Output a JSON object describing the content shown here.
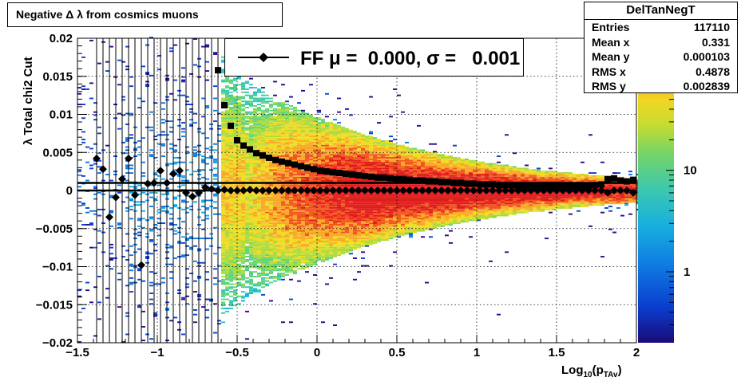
{
  "title": "Negative Δ λ from cosmics muons",
  "stats": {
    "name": "DelTanNegT",
    "rows": [
      {
        "label": "Entries",
        "value": "117110"
      },
      {
        "label": "Mean x",
        "value": "0.331"
      },
      {
        "label": "Mean y",
        "value": "0.000103"
      },
      {
        "label": "RMS x",
        "value": "0.4878"
      },
      {
        "label": "RMS y",
        "value": "0.002839"
      }
    ]
  },
  "legend": {
    "label": "FF μ =  0.000, σ =   0.001"
  },
  "chart_data": {
    "type": "heatmap",
    "xlabel_main": "Log",
    "xlabel_sub1": "10",
    "xlabel_mid": "(p",
    "xlabel_sub2": "TAv",
    "xlabel_end": ")",
    "ylabel": "λ  Total chi2 Cut",
    "xlim": [
      -1.5,
      2
    ],
    "ylim": [
      -0.02,
      0.02
    ],
    "x_ticks": [
      "−1.5",
      "−1",
      "−0.5",
      "0",
      "0.5",
      "1",
      "1.5",
      "2"
    ],
    "y_ticks": [
      "−0.02",
      "−0.015",
      "−0.01",
      "−0.005",
      "0",
      "0.005",
      "0.01",
      "0.015",
      "0.02"
    ],
    "z_scale": "log",
    "z_ticks": [
      "1",
      "10"
    ],
    "grid": true,
    "palette": [
      "#2b0a8c",
      "#0d3fd0",
      "#0e79e2",
      "#13a9e0",
      "#2fc7b4",
      "#5fd37a",
      "#a9dc3c",
      "#eedb22",
      "#f9a825",
      "#f2541c",
      "#e21a1a"
    ],
    "fit_lines": [
      {
        "name": "upper",
        "y": 0.001
      },
      {
        "name": "center",
        "y": 0.0
      }
    ],
    "series": [
      {
        "name": "sigma",
        "marker": "square",
        "x": [
          -0.62,
          -0.58,
          -0.54,
          -0.5,
          -0.46,
          -0.42,
          -0.38,
          -0.34,
          -0.3,
          -0.26,
          -0.22,
          -0.18,
          -0.14,
          -0.1,
          -0.06,
          -0.02,
          0.02,
          0.06,
          0.1,
          0.14,
          0.18,
          0.22,
          0.26,
          0.3,
          0.34,
          0.38,
          0.42,
          0.46,
          0.5,
          0.54,
          0.58,
          0.62,
          0.66,
          0.7,
          0.74,
          0.78,
          0.82,
          0.86,
          0.9,
          0.94,
          0.98,
          1.02,
          1.06,
          1.1,
          1.14,
          1.18,
          1.22,
          1.26,
          1.3,
          1.34,
          1.38,
          1.42,
          1.46,
          1.5,
          1.54,
          1.58,
          1.62,
          1.66,
          1.7,
          1.74,
          1.78,
          1.82,
          1.86,
          1.9,
          1.94,
          1.98
        ],
        "y": [
          0.0158,
          0.0112,
          0.0085,
          0.0066,
          0.0059,
          0.0054,
          0.0049,
          0.0046,
          0.0043,
          0.004,
          0.0038,
          0.0036,
          0.0034,
          0.0032,
          0.003,
          0.0028,
          0.0026,
          0.0025,
          0.0024,
          0.0023,
          0.0022,
          0.0021,
          0.002,
          0.0019,
          0.0018,
          0.0017,
          0.0017,
          0.0016,
          0.0015,
          0.0015,
          0.0014,
          0.0013,
          0.0013,
          0.0012,
          0.0012,
          0.0011,
          0.0011,
          0.001,
          0.001,
          0.0009,
          0.0009,
          0.0008,
          0.0008,
          0.0008,
          0.0007,
          0.0007,
          0.0007,
          0.0006,
          0.0006,
          0.0006,
          0.0005,
          0.0005,
          0.0005,
          0.0005,
          0.0006,
          0.0005,
          0.0006,
          0.0005,
          0.0006,
          0.0007,
          0.0008,
          0.0015,
          0.0016,
          0.0013,
          0.0012,
          0.0014
        ]
      },
      {
        "name": "mu",
        "marker": "diamond",
        "x": [
          -1.38,
          -1.34,
          -1.3,
          -1.26,
          -1.22,
          -1.18,
          -1.14,
          -1.1,
          -1.06,
          -1.02,
          -0.98,
          -0.94,
          -0.9,
          -0.86,
          -0.82,
          -0.78,
          -0.74,
          -0.7,
          -0.66,
          -0.62,
          -0.58,
          -0.54,
          -0.5,
          -0.46,
          -0.42,
          -0.38,
          -0.34,
          -0.3,
          -0.26,
          -0.22,
          -0.18,
          -0.14,
          -0.1,
          -0.06,
          -0.02,
          0.02,
          0.06,
          0.1,
          0.14,
          0.18,
          0.22,
          0.26,
          0.3,
          0.34,
          0.38,
          0.42,
          0.46,
          0.5,
          0.54,
          0.58,
          0.62,
          0.66,
          0.7,
          0.74,
          0.78,
          0.82,
          0.86,
          0.9,
          0.94,
          0.98,
          1.02,
          1.06,
          1.1,
          1.14,
          1.18,
          1.22,
          1.26,
          1.3,
          1.34,
          1.38,
          1.42,
          1.46,
          1.5,
          1.54,
          1.58,
          1.62,
          1.66,
          1.7,
          1.74,
          1.78,
          1.82,
          1.86,
          1.9,
          1.94,
          1.98
        ],
        "y": [
          0.0042,
          0.0028,
          -0.0035,
          -0.0009,
          0.0015,
          0.0042,
          -0.0006,
          -0.0098,
          0.0009,
          0.001,
          0.0026,
          0.001,
          0.0022,
          0.0026,
          -0.0003,
          -0.0008,
          -0.0003,
          0.0004,
          0.0002,
          0.0,
          0.0001,
          0.0,
          0.0,
          0.0,
          0.0001,
          0.0,
          0.0,
          0.0,
          0.0,
          0.0,
          0.0,
          0.0,
          0.0,
          0.0,
          0.0,
          0.0,
          0.0,
          0.0,
          0.0,
          0.0,
          0.0,
          0.0,
          0.0,
          0.0,
          0.0,
          0.0,
          0.0,
          0.0,
          0.0,
          0.0,
          0.0,
          0.0,
          0.0,
          0.0,
          0.0,
          0.0,
          0.0,
          0.0,
          0.0,
          0.0,
          0.0,
          0.0,
          0.0,
          0.0,
          0.0,
          0.0,
          0.0,
          0.0,
          0.0,
          0.0,
          0.0,
          0.0,
          0.0,
          0.0,
          0.0,
          0.0,
          0.0,
          0.0,
          0.0,
          0.0,
          -0.0003,
          0.0,
          0.0,
          0.0,
          -0.0003
        ],
        "err": [
          0.0,
          0.0,
          0.0,
          0.0,
          0.0,
          0.0,
          0.0,
          0.0,
          0.0,
          0.0,
          0.0,
          0.0,
          0.0,
          0.0,
          0.0,
          0.0,
          0.0,
          0.0,
          0.0,
          0.0,
          0.0,
          0.0,
          0.0,
          0.0,
          0.0,
          0.0,
          0.0,
          0.0,
          0.0,
          0.0,
          0.0,
          0.0,
          0.0,
          0.0,
          0.0,
          0.0,
          0.0,
          0.0,
          0.0,
          0.0,
          0.0,
          0.0,
          0.0,
          0.0,
          0.0,
          0.0,
          0.0,
          0.0,
          0.0,
          0.0,
          0.0,
          0.0,
          0.0,
          0.0,
          0.0,
          0.0,
          0.0,
          0.0,
          0.0,
          0.0,
          0.0,
          0.0,
          0.0,
          0.0,
          0.0,
          0.0,
          0.0,
          0.0,
          0.0,
          0.0,
          0.0,
          0.0,
          0.0,
          0.0,
          0.0,
          0.0,
          0.0,
          0.0,
          0.0,
          0.0,
          0.0,
          0.0,
          0.0,
          0.0,
          0.0
        ]
      }
    ]
  }
}
